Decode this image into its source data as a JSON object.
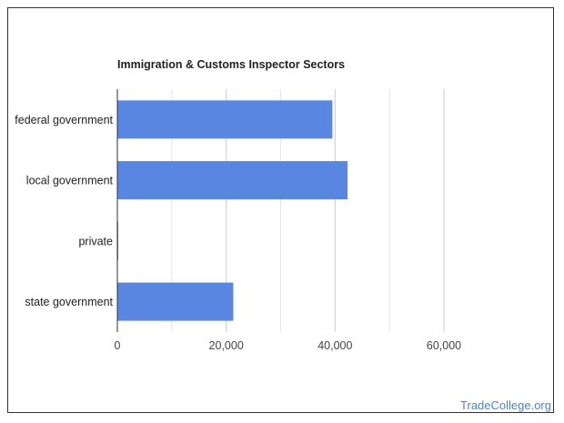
{
  "watermark": "TradeCollege.org",
  "chart_data": {
    "type": "bar",
    "orientation": "horizontal",
    "title": "Immigration & Customs Inspector Sectors",
    "xlabel": "",
    "ylabel": "",
    "categories": [
      "federal government",
      "local government",
      "private",
      "state government"
    ],
    "values": [
      39500,
      42300,
      50,
      21300
    ],
    "xlim": [
      0,
      60000
    ],
    "xticks": [
      0,
      20000,
      40000,
      60000
    ],
    "xtick_labels": [
      "0",
      "20,000",
      "40,000",
      "60,000"
    ],
    "grid": true,
    "legend": "none",
    "bar_color": "#5886e0",
    "gridline_color": "#e6e6e6",
    "axis_color": "#333333"
  }
}
